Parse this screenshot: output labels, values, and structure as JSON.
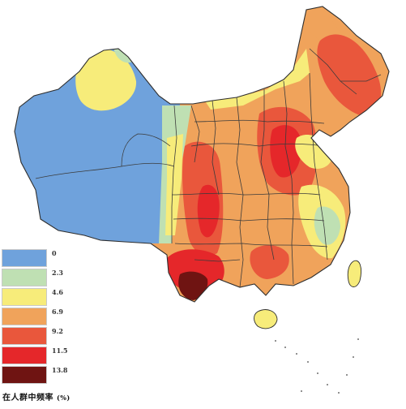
{
  "legend": {
    "levels": [
      {
        "label": "0",
        "color": "#6fa2dc"
      },
      {
        "label": "2.3",
        "color": "#bfe0b3"
      },
      {
        "label": "4.6",
        "color": "#f7ec7a"
      },
      {
        "label": "6.9",
        "color": "#f0a35b"
      },
      {
        "label": "9.2",
        "color": "#e9573c"
      },
      {
        "label": "11.5",
        "color": "#e5272a"
      },
      {
        "label": "13.8",
        "color": "#6f1412"
      }
    ],
    "caption": "在人群中频率",
    "unit": "(%)"
  }
}
